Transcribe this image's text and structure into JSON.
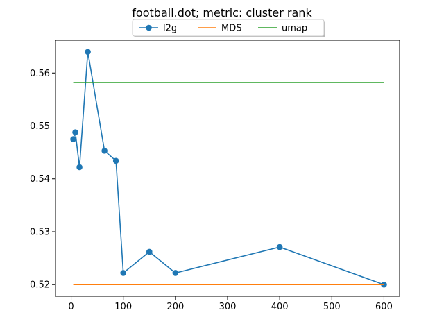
{
  "chart_data": {
    "type": "line",
    "title": "football.dot; metric: cluster rank",
    "xlabel": "",
    "ylabel": "",
    "xlim": [
      -30,
      630
    ],
    "ylim": [
      0.5178,
      0.5662
    ],
    "xticks": [
      0,
      100,
      200,
      300,
      400,
      500,
      600
    ],
    "yticks": [
      0.52,
      0.53,
      0.54,
      0.55,
      0.56
    ],
    "ytick_labels": [
      "0.52",
      "0.53",
      "0.54",
      "0.55",
      "0.56"
    ],
    "grid": false,
    "legend_position": "top-center",
    "series": [
      {
        "name": "l2g",
        "color": "#1f77b4",
        "marker": "circle",
        "x": [
          4,
          8,
          16,
          32,
          64,
          86,
          100,
          150,
          200,
          400,
          600
        ],
        "y": [
          0.5475,
          0.5488,
          0.5422,
          0.564,
          0.5453,
          0.5434,
          0.5222,
          0.5262,
          0.5222,
          0.5271,
          0.52
        ]
      },
      {
        "name": "MDS",
        "color": "#ff7f0e",
        "marker": "none",
        "x": [
          4,
          600
        ],
        "y": [
          0.52,
          0.52
        ]
      },
      {
        "name": "umap",
        "color": "#2ca02c",
        "marker": "none",
        "x": [
          4,
          600
        ],
        "y": [
          0.5582,
          0.5582
        ]
      }
    ]
  }
}
